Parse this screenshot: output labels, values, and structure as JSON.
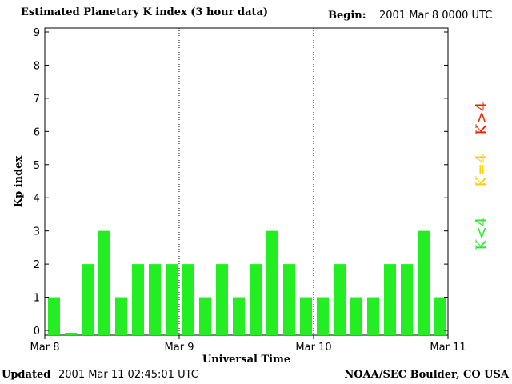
{
  "chart_data": {
    "type": "bar",
    "title": "Estimated Planetary K index (3 hour data)",
    "begin_label": "Begin:",
    "begin_value": "2001 Mar 8 0000 UTC",
    "ylabel": "Kp index",
    "xlabel": "Universal Time",
    "ylim": [
      0,
      9
    ],
    "yticks": [
      "0",
      "1",
      "2",
      "3",
      "4",
      "5",
      "6",
      "7",
      "8",
      "9"
    ],
    "xticks": [
      "Mar 8",
      "Mar 9",
      "Mar 10",
      "Mar 11"
    ],
    "values": [
      1,
      0,
      2,
      3,
      1,
      2,
      2,
      2,
      2,
      1,
      2,
      1,
      2,
      3,
      2,
      1,
      1,
      2,
      1,
      1,
      2,
      2,
      3,
      1
    ],
    "bar_color": "#22ee22",
    "day_separators": [
      "Mar 9",
      "Mar 10"
    ],
    "legend": [
      {
        "label": "K<4",
        "color": "#22ee22"
      },
      {
        "label": "K=4",
        "color": "#ffcc00"
      },
      {
        "label": "K>4",
        "color": "#ee2200"
      }
    ],
    "legend_placement": "right"
  },
  "footer": {
    "updated_label": "Updated",
    "updated_value": "2001 Mar 11 02:45:01 UTC",
    "source": "NOAA/SEC Boulder, CO USA"
  }
}
